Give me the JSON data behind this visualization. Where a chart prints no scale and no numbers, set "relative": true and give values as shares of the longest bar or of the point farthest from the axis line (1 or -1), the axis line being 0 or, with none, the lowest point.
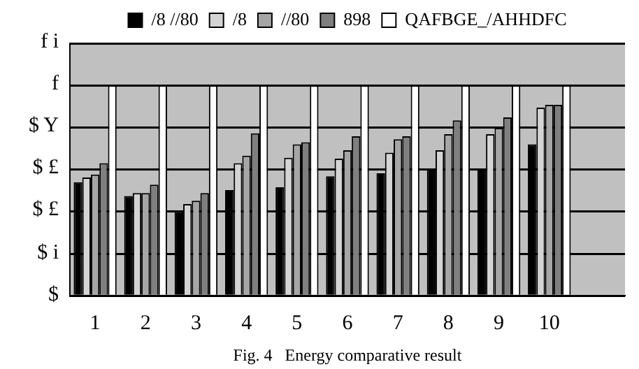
{
  "chart_data": {
    "type": "bar",
    "title": "Fig. 4   Energy comparative result",
    "categories": [
      "1",
      "2",
      "3",
      "4",
      "5",
      "6",
      "7",
      "8",
      "9",
      "10",
      null
    ],
    "series": [
      {
        "name": "/8 //80",
        "color": "#000000",
        "values": [
          0.54,
          0.474,
          0.402,
          0.502,
          0.516,
          0.568,
          0.582,
          0.604,
          0.604,
          0.72,
          null
        ]
      },
      {
        "name": "/8",
        "color": "#d4d4d4",
        "values": [
          0.562,
          0.488,
          0.436,
          0.63,
          0.656,
          0.652,
          0.68,
          0.692,
          0.768,
          0.894,
          null
        ]
      },
      {
        "name": "//80",
        "color": "#a6a6a6",
        "values": [
          0.576,
          0.488,
          0.452,
          0.666,
          0.72,
          0.692,
          0.744,
          0.768,
          0.798,
          0.908,
          null
        ]
      },
      {
        "name": "898",
        "color": "#7f7f7f",
        "values": [
          0.63,
          0.528,
          0.488,
          0.772,
          0.73,
          0.758,
          0.758,
          0.834,
          0.848,
          0.908,
          null
        ]
      },
      {
        "name": "QAFBGE_/AHHDFC",
        "color": "#ffffff",
        "values": [
          1,
          1,
          1,
          1,
          1,
          1,
          1,
          1,
          1,
          1,
          null
        ]
      }
    ],
    "relative": true,
    "annotations": [
      "f i",
      "f",
      "$ Y",
      "$ £",
      "$ £",
      "$ i",
      "$"
    ],
    "grid": "y",
    "legend": "top"
  }
}
